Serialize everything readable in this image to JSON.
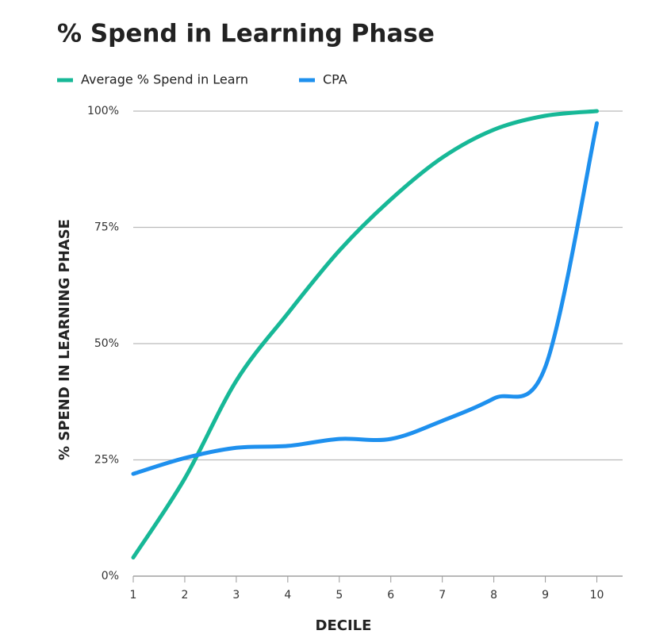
{
  "chart_data": {
    "type": "line",
    "title": "% Spend in Learning Phase",
    "x_label": "DECILE",
    "y_label": "% SPEND IN LEARNING PHASE",
    "x": [
      1,
      2,
      3,
      4,
      5,
      6,
      7,
      8,
      9,
      10
    ],
    "series": [
      {
        "name": "Average % Spend in Learn",
        "color": "#17b897",
        "values": [
          4,
          21,
          42,
          56.5,
          70,
          81,
          90,
          96,
          99,
          100
        ]
      },
      {
        "name": "CPA",
        "color": "#1e90ee",
        "values": [
          22,
          25.4,
          27.6,
          28,
          29.5,
          29.5,
          33.4,
          38.2,
          45,
          97.4
        ]
      }
    ],
    "xlim": [
      1,
      10.5
    ],
    "xticks": [
      1,
      2,
      3,
      4,
      5,
      6,
      7,
      8,
      9,
      10
    ],
    "ylim": [
      0,
      100
    ],
    "yticks": [
      {
        "value": 0,
        "label": "0%"
      },
      {
        "value": 25,
        "label": "25%"
      },
      {
        "value": 50,
        "label": "50%"
      },
      {
        "value": 75,
        "label": "75%"
      },
      {
        "value": 100,
        "label": "100%"
      }
    ],
    "grid": true
  }
}
